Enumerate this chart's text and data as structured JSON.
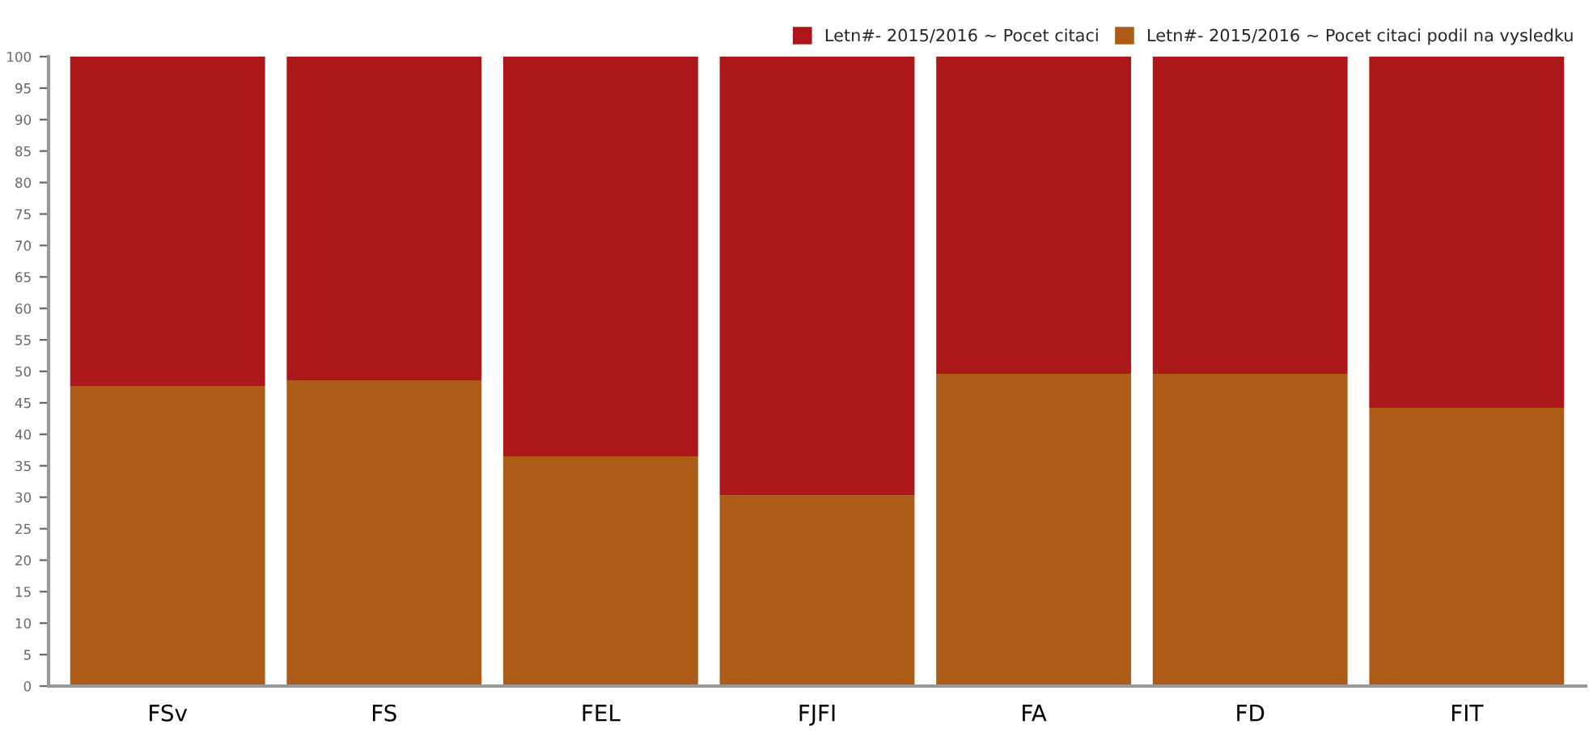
{
  "chart_data": {
    "type": "bar",
    "stacked": true,
    "categories": [
      "FSv",
      "FS",
      "FEL",
      "FJFI",
      "FA",
      "FD",
      "FIT"
    ],
    "series": [
      {
        "name": "Letn#- 2015/2016 ~ Pocet citaci podil na vysledku",
        "color": "#ad5b17",
        "values": [
          47.6,
          48.6,
          36.5,
          30.3,
          49.6,
          49.6,
          44.2
        ]
      },
      {
        "name": "Letn#- 2015/2016 ~ Pocet citaci",
        "color": "#ac171a",
        "values": [
          52.4,
          51.4,
          63.5,
          70.0,
          50.4,
          50.4,
          55.8
        ]
      }
    ],
    "ylim": [
      0,
      100
    ],
    "yticks": [
      0,
      5,
      10,
      15,
      20,
      25,
      30,
      35,
      40,
      45,
      50,
      55,
      60,
      65,
      70,
      75,
      80,
      85,
      90,
      95,
      100
    ],
    "grid": false,
    "legend": "top right"
  }
}
